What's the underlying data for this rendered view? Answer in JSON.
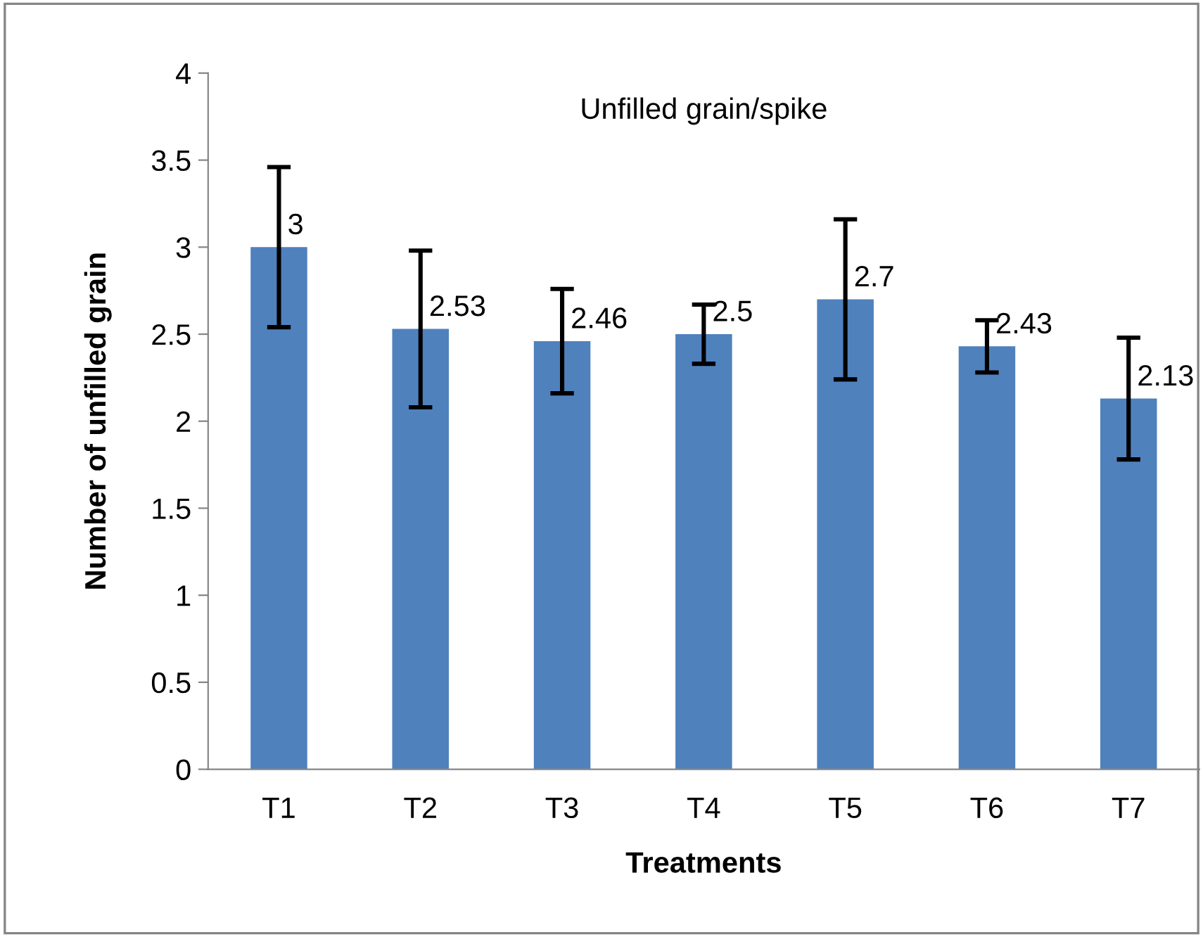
{
  "chart_data": {
    "type": "bar",
    "title": "Unfilled grain/spike",
    "xlabel": "Treatments",
    "ylabel": "Number of unfilled grain",
    "categories": [
      "T1",
      "T2",
      "T3",
      "T4",
      "T5",
      "T6",
      "T7"
    ],
    "values": [
      3,
      2.53,
      2.46,
      2.5,
      2.7,
      2.43,
      2.13
    ],
    "errors": [
      0.46,
      0.45,
      0.3,
      0.17,
      0.46,
      0.15,
      0.35
    ],
    "color": "#4f81bd",
    "data_labels": true,
    "ylim": [
      0,
      4
    ],
    "yticks": [
      0,
      0.5,
      1,
      1.5,
      2,
      2.5,
      3,
      3.5,
      4
    ],
    "grid": false,
    "legend": false
  }
}
